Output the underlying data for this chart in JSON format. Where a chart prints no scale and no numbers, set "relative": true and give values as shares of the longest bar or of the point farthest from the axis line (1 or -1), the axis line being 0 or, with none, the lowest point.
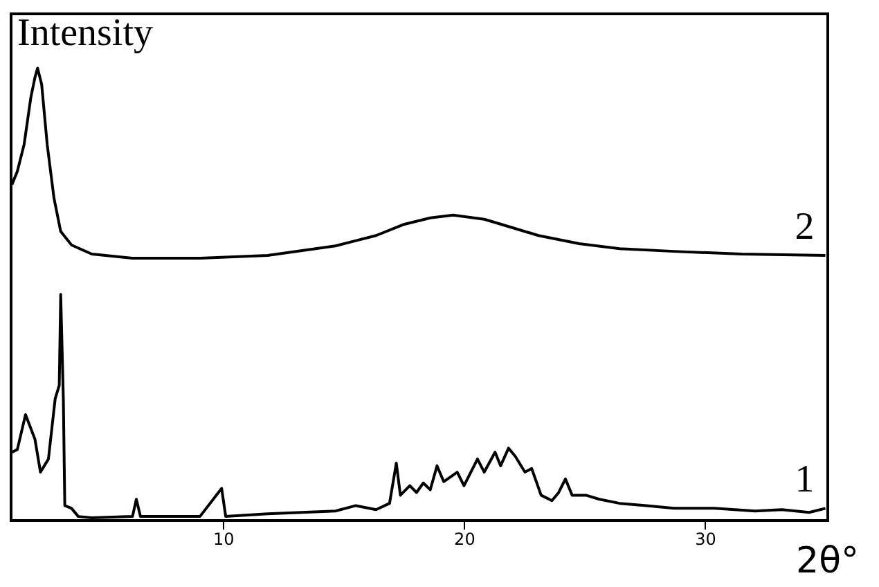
{
  "chart_data": {
    "type": "line",
    "relative": true,
    "ylabel": "Intensity",
    "xlabel": "2θ°",
    "xlim": [
      1.2,
      35.1
    ],
    "xticks": [
      10,
      20,
      30
    ],
    "marker": "none",
    "line_style": "solid",
    "series": [
      {
        "name": "2",
        "color": "#000000",
        "x": [
          1.24,
          1.46,
          1.74,
          2.02,
          2.19,
          2.3,
          2.47,
          2.7,
          2.98,
          3.26,
          3.71,
          4.55,
          6.24,
          9.04,
          11.85,
          14.66,
          16.35,
          17.47,
          18.6,
          19.55,
          20.84,
          21.97,
          23.09,
          24.78,
          26.46,
          28.71,
          31.52,
          35.0
        ],
        "values": [
          0.743,
          0.772,
          0.831,
          0.935,
          0.979,
          1.0,
          0.964,
          0.831,
          0.713,
          0.639,
          0.609,
          0.589,
          0.58,
          0.58,
          0.586,
          0.607,
          0.63,
          0.654,
          0.669,
          0.675,
          0.666,
          0.648,
          0.63,
          0.612,
          0.601,
          0.595,
          0.589,
          0.586
        ]
      },
      {
        "name": "1",
        "color": "#000000",
        "x": [
          1.24,
          1.46,
          1.8,
          2.19,
          2.42,
          2.75,
          3.03,
          3.2,
          3.26,
          3.37,
          3.43,
          3.71,
          3.99,
          4.55,
          6.24,
          6.4,
          6.57,
          9.04,
          9.94,
          10.11,
          11.85,
          14.66,
          15.51,
          16.35,
          16.91,
          17.19,
          17.36,
          17.75,
          18.03,
          18.31,
          18.6,
          18.88,
          19.16,
          19.72,
          20.0,
          20.56,
          20.84,
          21.29,
          21.52,
          21.85,
          22.13,
          22.53,
          22.81,
          23.2,
          23.65,
          23.93,
          24.21,
          24.49,
          25.06,
          25.62,
          26.46,
          27.58,
          28.71,
          30.39,
          32.08,
          33.2,
          34.33,
          35.0
        ],
        "values": [
          0.151,
          0.157,
          0.234,
          0.18,
          0.107,
          0.136,
          0.269,
          0.299,
          0.5,
          0.269,
          0.033,
          0.027,
          0.009,
          0.006,
          0.009,
          0.047,
          0.009,
          0.009,
          0.071,
          0.009,
          0.015,
          0.021,
          0.033,
          0.024,
          0.038,
          0.127,
          0.056,
          0.077,
          0.062,
          0.083,
          0.068,
          0.121,
          0.086,
          0.107,
          0.077,
          0.136,
          0.107,
          0.151,
          0.121,
          0.16,
          0.142,
          0.107,
          0.115,
          0.056,
          0.044,
          0.062,
          0.092,
          0.056,
          0.056,
          0.047,
          0.038,
          0.033,
          0.027,
          0.027,
          0.021,
          0.024,
          0.018,
          0.027
        ]
      }
    ]
  }
}
